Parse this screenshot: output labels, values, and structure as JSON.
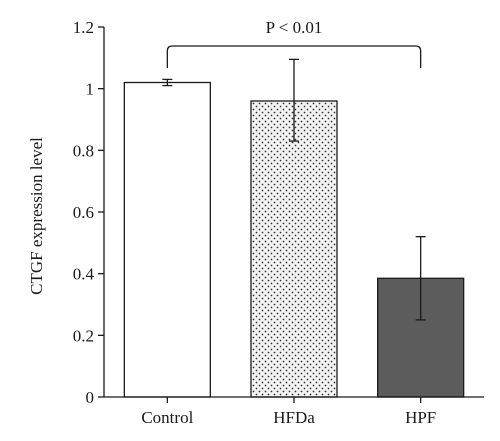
{
  "chart_data": {
    "type": "bar",
    "title": "",
    "xlabel": "",
    "ylabel": "CTGF expression level",
    "ylim": [
      0,
      1.2
    ],
    "yticks": [
      "0",
      "0.2",
      "0.4",
      "0.6",
      "0.8",
      "1",
      "1.2"
    ],
    "categories": [
      "Control",
      "HFDa",
      "HPF"
    ],
    "values": [
      1.02,
      0.96,
      0.385
    ],
    "error_upper": [
      1.03,
      1.095,
      0.52
    ],
    "error_lower": [
      1.01,
      0.83,
      0.25
    ],
    "bar_fills": [
      "white",
      "dotted",
      "solid"
    ],
    "bar_colors": [
      "#ffffff",
      "#f2f2f2",
      "#5c5c5c"
    ],
    "significance": {
      "label": "P < 0.01",
      "from": "Control",
      "to": "HPF"
    },
    "grid": false,
    "legend": "none"
  }
}
